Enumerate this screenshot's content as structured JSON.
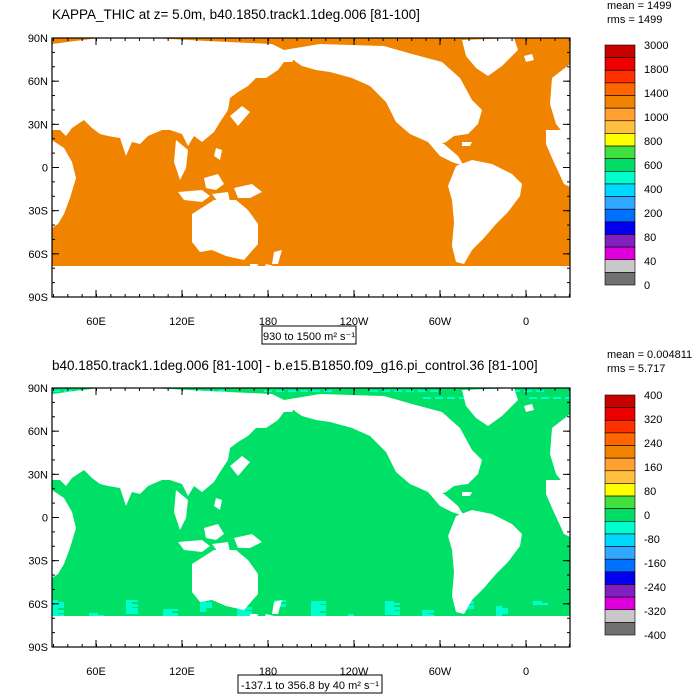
{
  "panels": [
    {
      "title": "KAPPA_THIC at z=   5.0m, b40.1850.track1.1deg.006 [81-100]",
      "stats": [
        "mean = 1499",
        "rms = 1499"
      ],
      "range_label": "930 to 1500 m² s⁻¹",
      "field_color": "#f08400",
      "accent_colors": [
        "#f08400"
      ],
      "lat_labels": [
        "90N",
        "60N",
        "30N",
        "0",
        "30S",
        "60S",
        "90S"
      ],
      "lon_labels": [
        "60E",
        "120E",
        "180",
        "120W",
        "60W",
        "0"
      ],
      "colorbar_labels": [
        "3000",
        "1800",
        "1400",
        "1000",
        "800",
        "600",
        "400",
        "200",
        "80",
        "40",
        "0"
      ],
      "colorbar_colors": [
        "#c80000",
        "#ee0000",
        "#ff3000",
        "#ff6600",
        "#f08400",
        "#ffa030",
        "#ffc040",
        "#ffff00",
        "#40e040",
        "#00dd66",
        "#00ffcc",
        "#00d8ff",
        "#30a8ff",
        "#0070ff",
        "#0000ee",
        "#8020c0",
        "#dd00dd",
        "#c8c8c8",
        "#707070"
      ]
    },
    {
      "title": "b40.1850.track1.1deg.006 [81-100] - b.e15.B1850.f09_g16.pi_control.36 [81-100]",
      "stats": [
        "mean = 0.004811",
        "rms = 5.717"
      ],
      "range_label": "-137.1 to 356.8 by 40 m² s⁻¹",
      "field_color": "#00e066",
      "accent_colors": [
        "#00ffcc",
        "#ffc040"
      ],
      "lat_labels": [
        "90N",
        "60N",
        "30N",
        "0",
        "30S",
        "60S",
        "90S"
      ],
      "lon_labels": [
        "60E",
        "120E",
        "180",
        "120W",
        "60W",
        "0"
      ],
      "colorbar_labels": [
        "400",
        "320",
        "240",
        "160",
        "80",
        "0",
        "-80",
        "-160",
        "-240",
        "-320",
        "-400"
      ],
      "colorbar_colors": [
        "#c80000",
        "#ee0000",
        "#ff3000",
        "#ff6600",
        "#f08400",
        "#ffa030",
        "#ffc040",
        "#ffff00",
        "#40e040",
        "#00dd66",
        "#00ffcc",
        "#00d8ff",
        "#30a8ff",
        "#0070ff",
        "#0000ee",
        "#8020c0",
        "#dd00dd",
        "#c8c8c8",
        "#707070"
      ]
    }
  ]
}
